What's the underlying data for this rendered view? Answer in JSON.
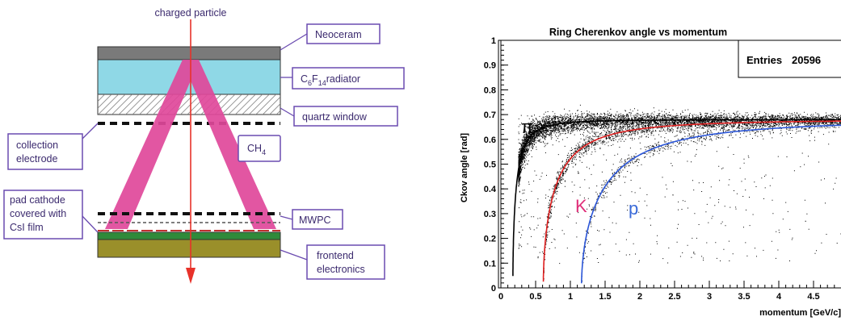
{
  "diagram": {
    "particle_label": "charged particle",
    "labels": {
      "neoceram": "Neoceram",
      "radiator_main": "C",
      "radiator_sub1": "6",
      "radiator_mid": "F",
      "radiator_sub2": "14",
      "radiator_tail": "radiator",
      "quartz": "quartz window",
      "collection_line1": "collection",
      "collection_line2": "electrode",
      "gas_main": "CH",
      "gas_sub": "4",
      "pad_line1": "pad cathode",
      "pad_line2": "covered with",
      "pad_line3": "CsI film",
      "mwpc": "MWPC",
      "frontend_line1": "frontend",
      "frontend_line2": "electronics"
    },
    "colors": {
      "label_border": "#6a4bb0",
      "label_text": "#3b2a6e",
      "particle_arrow": "#e8322a",
      "cone": "#e0489a",
      "neoceram": "#7a7a7a",
      "radiator": "#8fd8e6",
      "cathode": "#2f8a3a",
      "electronics": "#9a8f2a"
    }
  },
  "chart_data": {
    "type": "scatter",
    "title": "Ring Cherenkov angle vs momentum",
    "xlabel": "momentum [GeV/c]",
    "ylabel": "Ckov angle [rad]",
    "xlim": [
      0,
      5
    ],
    "ylim": [
      0,
      1
    ],
    "x_ticks": [
      "0",
      "0.5",
      "1",
      "1.5",
      "2",
      "2.5",
      "3",
      "3.5",
      "4",
      "4.5"
    ],
    "y_ticks": [
      "0",
      "0.1",
      "0.2",
      "0.3",
      "0.4",
      "0.5",
      "0.6",
      "0.7",
      "0.8",
      "0.9",
      "1"
    ],
    "stats": {
      "label": "Entries",
      "value": "20596"
    },
    "saturation_angle": 0.68,
    "series": [
      {
        "name": "π",
        "mass_gev": 0.1396,
        "color": "#000000"
      },
      {
        "name": "K",
        "mass_gev": 0.4937,
        "color": "#e02020"
      },
      {
        "name": "p",
        "mass_gev": 0.9383,
        "color": "#2a55d8"
      }
    ],
    "label_colors": {
      "π": "#000000",
      "K": "#e0307a",
      "p": "#3a6ad8"
    },
    "grid": false
  }
}
